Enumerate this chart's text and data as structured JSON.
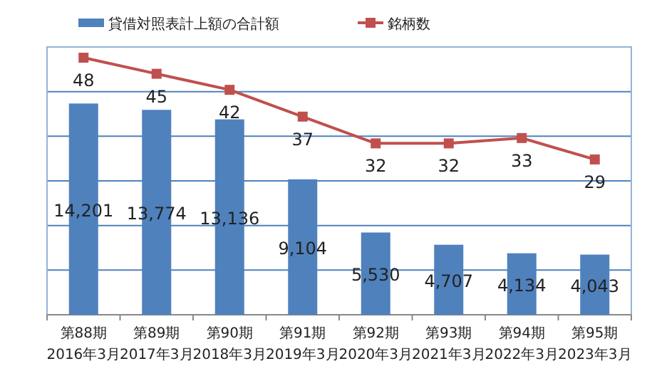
{
  "chart_data": {
    "type": "bar",
    "categories": [
      "第88期\n2016年3月",
      "第89期\n2017年3月",
      "第90期\n2018年3月",
      "第91期\n2019年3月",
      "第92期\n2020年3月",
      "第93期\n2021年3月",
      "第94期\n2022年3月",
      "第95期\n2023年3月"
    ],
    "series": [
      {
        "name": "貸借対照表計上額の合計額",
        "color": "#4f81bd",
        "values": [
          14201,
          13774,
          13136,
          9104,
          5530,
          4707,
          4134,
          4043
        ],
        "value_labels": [
          "14,201",
          "13,774",
          "13,136",
          "9,104",
          "5,530",
          "4,707",
          "4,134",
          "4,043"
        ]
      },
      {
        "name": "銘柄数",
        "type": "line",
        "axis": "y2",
        "color": "#c0504d",
        "values": [
          48,
          45,
          42,
          37,
          32,
          32,
          33,
          29
        ]
      }
    ],
    "ylim": [
      0,
      18000
    ],
    "yticks": [
      {
        "value": 0,
        "label": null
      },
      {
        "value": 3000,
        "label": null
      },
      {
        "value": 6000,
        "label": null
      },
      {
        "value": 9000,
        "label": null
      },
      {
        "value": 12000,
        "label": null
      },
      {
        "value": 15000,
        "label": null
      },
      {
        "value": 18000,
        "label": null
      }
    ],
    "y2lim": [
      0,
      50
    ],
    "tick_labels": "x",
    "grid": "y",
    "legend": "top",
    "marker": "square",
    "data_labels": true
  }
}
